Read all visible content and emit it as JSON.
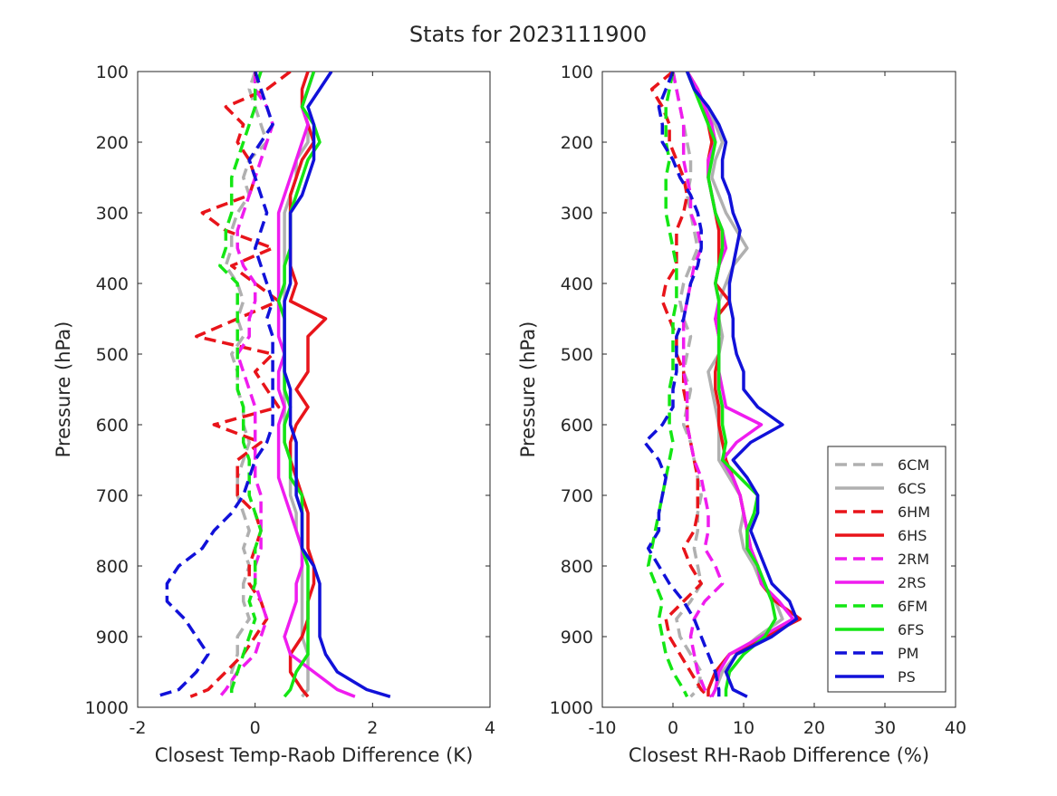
{
  "figure": {
    "title": "Stats for 2023111900"
  },
  "chart_data": [
    {
      "type": "line",
      "xlabel": "Closest Temp-Raob Difference (K)",
      "ylabel": "Pressure (hPa)",
      "xlim": [
        -2,
        4
      ],
      "ylim": [
        100,
        1000
      ],
      "y_reversed": true,
      "xticks": [
        "-2",
        "0",
        "2",
        "4"
      ],
      "yticks": [
        "100",
        "200",
        "300",
        "400",
        "500",
        "600",
        "700",
        "800",
        "900",
        "1000"
      ],
      "pressure_levels": [
        100,
        125,
        150,
        175,
        200,
        225,
        250,
        275,
        300,
        325,
        350,
        375,
        400,
        425,
        450,
        475,
        500,
        525,
        550,
        575,
        600,
        625,
        650,
        675,
        700,
        725,
        750,
        775,
        800,
        825,
        850,
        875,
        900,
        925,
        950,
        975,
        985
      ],
      "series": [
        {
          "name": "6CM",
          "color": "#b0b0b0",
          "dash": true,
          "values": [
            0.0,
            -0.1,
            0.0,
            0.1,
            0.2,
            -0.1,
            -0.2,
            -0.1,
            -0.3,
            -0.4,
            -0.4,
            -0.5,
            -0.3,
            -0.2,
            -0.3,
            -0.2,
            -0.4,
            -0.3,
            -0.3,
            -0.2,
            -0.2,
            -0.1,
            -0.2,
            -0.3,
            -0.3,
            -0.2,
            -0.1,
            -0.2,
            -0.1,
            -0.2,
            -0.2,
            -0.1,
            -0.3,
            -0.3,
            -0.4,
            -0.4,
            -0.4
          ]
        },
        {
          "name": "6CS",
          "color": "#b0b0b0",
          "dash": false,
          "values": [
            1.0,
            0.9,
            0.8,
            0.9,
            0.9,
            0.7,
            0.7,
            0.6,
            0.5,
            0.5,
            0.5,
            0.5,
            0.5,
            0.5,
            0.5,
            0.5,
            0.5,
            0.5,
            0.5,
            0.5,
            0.5,
            0.5,
            0.6,
            0.6,
            0.6,
            0.7,
            0.7,
            0.8,
            0.8,
            0.8,
            0.8,
            0.8,
            0.8,
            0.9,
            0.9,
            0.9,
            0.8
          ]
        },
        {
          "name": "6HM",
          "color": "#e8141a",
          "dash": true,
          "values": [
            0.6,
            0.2,
            -0.5,
            -0.2,
            -0.3,
            -0.1,
            0.0,
            -0.1,
            -0.9,
            -0.5,
            0.3,
            -0.4,
            0.0,
            0.4,
            -0.3,
            -1.0,
            0.3,
            0.0,
            0.2,
            0.4,
            -0.7,
            0.1,
            -0.3,
            -0.3,
            -0.3,
            0.0,
            0.1,
            0.0,
            -0.1,
            -0.1,
            0.1,
            0.2,
            0.0,
            -0.2,
            -0.5,
            -0.8,
            -1.1
          ]
        },
        {
          "name": "6HS",
          "color": "#e8141a",
          "dash": false,
          "values": [
            0.9,
            0.8,
            0.8,
            0.9,
            1.0,
            0.8,
            0.7,
            0.6,
            0.6,
            0.6,
            0.6,
            0.6,
            0.7,
            0.6,
            1.2,
            0.9,
            0.9,
            0.9,
            0.7,
            0.9,
            0.7,
            0.6,
            0.6,
            0.7,
            0.8,
            0.9,
            0.9,
            0.9,
            1.0,
            1.0,
            0.9,
            0.9,
            0.8,
            0.6,
            0.6,
            0.8,
            0.9
          ]
        },
        {
          "name": "2RM",
          "color": "#ef1cef",
          "dash": true,
          "values": [
            0.0,
            0.0,
            0.2,
            0.3,
            0.2,
            0.1,
            0.0,
            -0.1,
            -0.2,
            -0.3,
            -0.3,
            -0.2,
            0.0,
            0.0,
            -0.1,
            -0.1,
            -0.3,
            -0.2,
            -0.1,
            0.0,
            0.0,
            0.0,
            0.0,
            0.0,
            0.1,
            0.1,
            0.1,
            0.1,
            0.0,
            0.0,
            0.1,
            0.2,
            0.1,
            0.0,
            -0.3,
            -0.5,
            -0.6
          ]
        },
        {
          "name": "2RS",
          "color": "#ef1cef",
          "dash": false,
          "values": [
            1.0,
            0.9,
            0.8,
            0.9,
            0.8,
            0.7,
            0.6,
            0.5,
            0.4,
            0.4,
            0.4,
            0.4,
            0.4,
            0.4,
            0.4,
            0.4,
            0.5,
            0.4,
            0.4,
            0.5,
            0.4,
            0.4,
            0.4,
            0.4,
            0.5,
            0.6,
            0.7,
            0.8,
            0.8,
            0.7,
            0.7,
            0.6,
            0.5,
            0.6,
            1.0,
            1.4,
            1.7
          ]
        },
        {
          "name": "6FM",
          "color": "#14e614",
          "dash": true,
          "values": [
            0.1,
            0.0,
            0.0,
            -0.1,
            -0.2,
            -0.3,
            -0.4,
            -0.4,
            -0.4,
            -0.5,
            -0.5,
            -0.6,
            -0.3,
            -0.3,
            -0.3,
            -0.3,
            -0.3,
            -0.3,
            -0.3,
            -0.2,
            -0.2,
            -0.2,
            -0.1,
            -0.1,
            -0.1,
            0.0,
            0.1,
            0.0,
            0.0,
            0.0,
            -0.1,
            0.0,
            -0.1,
            -0.2,
            -0.3,
            -0.4,
            -0.4
          ]
        },
        {
          "name": "6FS",
          "color": "#14e614",
          "dash": false,
          "values": [
            1.0,
            0.9,
            0.8,
            1.0,
            1.1,
            0.9,
            0.8,
            0.7,
            0.6,
            0.6,
            0.6,
            0.5,
            0.5,
            0.4,
            0.5,
            0.5,
            0.5,
            0.5,
            0.5,
            0.6,
            0.5,
            0.5,
            0.6,
            0.6,
            0.8,
            0.8,
            0.8,
            0.8,
            0.9,
            0.9,
            0.9,
            0.9,
            0.9,
            0.9,
            0.7,
            0.6,
            0.5
          ]
        },
        {
          "name": "PM",
          "color": "#1111d9",
          "dash": true,
          "values": [
            0.0,
            0.1,
            0.2,
            0.3,
            0.1,
            -0.1,
            0.0,
            0.1,
            0.2,
            0.1,
            0.0,
            0.1,
            0.2,
            0.3,
            0.2,
            0.3,
            0.3,
            0.3,
            0.3,
            0.3,
            0.3,
            0.2,
            0.0,
            -0.1,
            -0.2,
            -0.4,
            -0.7,
            -0.9,
            -1.3,
            -1.5,
            -1.5,
            -1.2,
            -1.0,
            -0.8,
            -1.0,
            -1.3,
            -1.7
          ]
        },
        {
          "name": "PS",
          "color": "#1111d9",
          "dash": false,
          "values": [
            1.3,
            1.1,
            0.9,
            1.0,
            1.0,
            1.0,
            0.9,
            0.8,
            0.6,
            0.6,
            0.6,
            0.6,
            0.6,
            0.5,
            0.5,
            0.5,
            0.5,
            0.5,
            0.6,
            0.6,
            0.6,
            0.7,
            0.7,
            0.7,
            0.7,
            0.8,
            0.8,
            0.8,
            1.0,
            1.1,
            1.1,
            1.1,
            1.1,
            1.2,
            1.4,
            1.9,
            2.3
          ]
        }
      ]
    },
    {
      "type": "line",
      "xlabel": "Closest RH-Raob Difference (%)",
      "ylabel": "Pressure (hPa)",
      "xlim": [
        -10,
        40
      ],
      "ylim": [
        100,
        1000
      ],
      "y_reversed": true,
      "xticks": [
        "-10",
        "0",
        "10",
        "20",
        "30",
        "40"
      ],
      "yticks": [
        "100",
        "200",
        "300",
        "400",
        "500",
        "600",
        "700",
        "800",
        "900",
        "1000"
      ],
      "pressure_levels": [
        100,
        125,
        150,
        175,
        200,
        225,
        250,
        275,
        300,
        325,
        350,
        375,
        400,
        425,
        450,
        475,
        500,
        525,
        550,
        575,
        600,
        625,
        650,
        675,
        700,
        725,
        750,
        775,
        800,
        825,
        850,
        875,
        900,
        925,
        950,
        975,
        985
      ],
      "series": [
        {
          "name": "6CM",
          "color": "#b0b0b0",
          "dash": true,
          "values": [
            0.0,
            0.5,
            1.0,
            1.5,
            2.0,
            2.5,
            2.5,
            2.0,
            2.5,
            3.0,
            3.5,
            2.5,
            1.5,
            1.0,
            1.5,
            2.5,
            2.0,
            1.5,
            2.5,
            2.0,
            1.5,
            2.5,
            3.0,
            3.5,
            4.0,
            3.5,
            3.5,
            3.0,
            3.5,
            4.0,
            2.5,
            0.5,
            1.0,
            2.5,
            4.0,
            3.5,
            2.5
          ]
        },
        {
          "name": "6CS",
          "color": "#b0b0b0",
          "dash": false,
          "values": [
            2.0,
            3.5,
            4.5,
            6.0,
            7.0,
            6.0,
            5.5,
            6.5,
            7.5,
            9.0,
            10.5,
            8.5,
            7.5,
            6.5,
            6.5,
            7.0,
            6.5,
            5.0,
            5.5,
            6.0,
            6.5,
            6.5,
            6.5,
            8.0,
            9.5,
            10.0,
            9.5,
            10.0,
            11.5,
            12.5,
            14.5,
            15.5,
            12.0,
            9.0,
            7.0,
            6.0,
            5.5
          ]
        },
        {
          "name": "6HM",
          "color": "#e8141a",
          "dash": true,
          "values": [
            0.0,
            -3.0,
            -1.5,
            -0.5,
            -0.5,
            0.5,
            1.5,
            2.0,
            1.5,
            0.5,
            0.5,
            0.5,
            -1.0,
            -1.5,
            -0.5,
            0.5,
            0.5,
            1.5,
            1.5,
            2.0,
            2.0,
            2.5,
            3.0,
            3.5,
            3.5,
            3.5,
            3.0,
            1.5,
            2.5,
            4.0,
            1.5,
            -1.0,
            -0.5,
            1.0,
            2.5,
            4.0,
            5.0
          ]
        },
        {
          "name": "6HS",
          "color": "#e8141a",
          "dash": false,
          "values": [
            2.0,
            3.5,
            4.5,
            5.0,
            5.5,
            5.0,
            5.0,
            5.5,
            6.0,
            6.5,
            6.5,
            6.5,
            6.0,
            8.0,
            6.0,
            6.5,
            6.5,
            6.0,
            6.0,
            6.5,
            6.5,
            7.0,
            7.5,
            8.5,
            9.5,
            10.0,
            10.5,
            11.0,
            12.0,
            12.5,
            14.5,
            18.0,
            13.0,
            8.0,
            6.0,
            5.0,
            5.0
          ]
        },
        {
          "name": "2RM",
          "color": "#ef1cef",
          "dash": true,
          "values": [
            0.0,
            0.5,
            1.0,
            1.5,
            1.5,
            1.5,
            2.0,
            2.5,
            2.5,
            3.5,
            4.0,
            3.0,
            2.5,
            2.0,
            1.5,
            1.5,
            1.5,
            1.5,
            2.0,
            2.0,
            2.0,
            2.5,
            3.0,
            4.0,
            4.5,
            5.0,
            5.0,
            4.5,
            6.0,
            7.0,
            4.5,
            3.0,
            2.5,
            3.0,
            3.5,
            4.5,
            5.5
          ]
        },
        {
          "name": "2RS",
          "color": "#ef1cef",
          "dash": false,
          "values": [
            2.0,
            3.5,
            4.5,
            5.5,
            6.0,
            5.0,
            5.0,
            5.5,
            6.0,
            7.0,
            7.5,
            6.5,
            6.0,
            6.5,
            6.0,
            6.5,
            6.5,
            6.5,
            7.0,
            7.5,
            12.5,
            9.0,
            7.0,
            8.5,
            9.5,
            10.0,
            10.5,
            11.0,
            12.0,
            12.5,
            15.0,
            17.0,
            12.5,
            8.0,
            6.5,
            6.0,
            5.5
          ]
        },
        {
          "name": "6FM",
          "color": "#14e614",
          "dash": true,
          "values": [
            0.0,
            -0.5,
            -1.0,
            -1.0,
            -1.0,
            -0.5,
            -1.0,
            -1.0,
            -1.0,
            -0.5,
            0.0,
            0.5,
            0.5,
            0.5,
            0.0,
            0.0,
            0.0,
            0.0,
            -0.5,
            -0.5,
            -0.5,
            0.0,
            -0.5,
            -1.0,
            -1.5,
            -2.0,
            -2.5,
            -3.0,
            -3.5,
            -2.5,
            -1.5,
            -2.0,
            -1.5,
            -1.0,
            0.0,
            1.5,
            2.0
          ]
        },
        {
          "name": "6FS",
          "color": "#14e614",
          "dash": false,
          "values": [
            2.0,
            3.0,
            4.0,
            5.0,
            6.0,
            5.5,
            5.0,
            5.5,
            6.0,
            7.0,
            7.0,
            6.5,
            6.0,
            6.5,
            6.5,
            6.5,
            6.5,
            6.5,
            6.5,
            7.0,
            7.0,
            7.5,
            7.0,
            9.5,
            12.0,
            11.5,
            10.5,
            10.5,
            12.0,
            13.0,
            14.0,
            14.5,
            13.0,
            10.0,
            8.0,
            7.5,
            7.5
          ]
        },
        {
          "name": "PM",
          "color": "#1111d9",
          "dash": true,
          "values": [
            0.0,
            -1.0,
            -2.0,
            -1.5,
            -1.5,
            0.0,
            1.0,
            2.5,
            3.5,
            4.0,
            4.0,
            3.5,
            2.5,
            2.0,
            1.5,
            0.5,
            0.5,
            0.5,
            0.0,
            0.0,
            -1.5,
            -4.0,
            -2.0,
            -1.0,
            -1.5,
            -2.0,
            -2.0,
            -3.5,
            -2.0,
            -0.5,
            1.5,
            3.0,
            4.0,
            5.0,
            6.0,
            6.5,
            6.5
          ]
        },
        {
          "name": "PS",
          "color": "#1111d9",
          "dash": false,
          "values": [
            2.0,
            3.0,
            5.0,
            6.5,
            7.5,
            7.0,
            7.0,
            8.0,
            8.5,
            9.5,
            9.0,
            8.5,
            8.0,
            8.0,
            8.5,
            8.5,
            9.0,
            10.0,
            10.0,
            12.0,
            15.5,
            11.0,
            8.5,
            10.5,
            12.0,
            12.0,
            11.0,
            12.0,
            13.0,
            14.0,
            16.5,
            17.5,
            14.0,
            9.0,
            7.5,
            8.5,
            10.5
          ]
        }
      ]
    }
  ],
  "legend": {
    "placement": "bottom-right of right panel",
    "entries": [
      {
        "label": "6CM",
        "color": "#b0b0b0",
        "dash": true
      },
      {
        "label": "6CS",
        "color": "#b0b0b0",
        "dash": false
      },
      {
        "label": "6HM",
        "color": "#e8141a",
        "dash": true
      },
      {
        "label": "6HS",
        "color": "#e8141a",
        "dash": false
      },
      {
        "label": "2RM",
        "color": "#ef1cef",
        "dash": true
      },
      {
        "label": "2RS",
        "color": "#ef1cef",
        "dash": false
      },
      {
        "label": "6FM",
        "color": "#14e614",
        "dash": true
      },
      {
        "label": "6FS",
        "color": "#14e614",
        "dash": false
      },
      {
        "label": "PM",
        "color": "#1111d9",
        "dash": true
      },
      {
        "label": "PS",
        "color": "#1111d9",
        "dash": false
      }
    ]
  }
}
